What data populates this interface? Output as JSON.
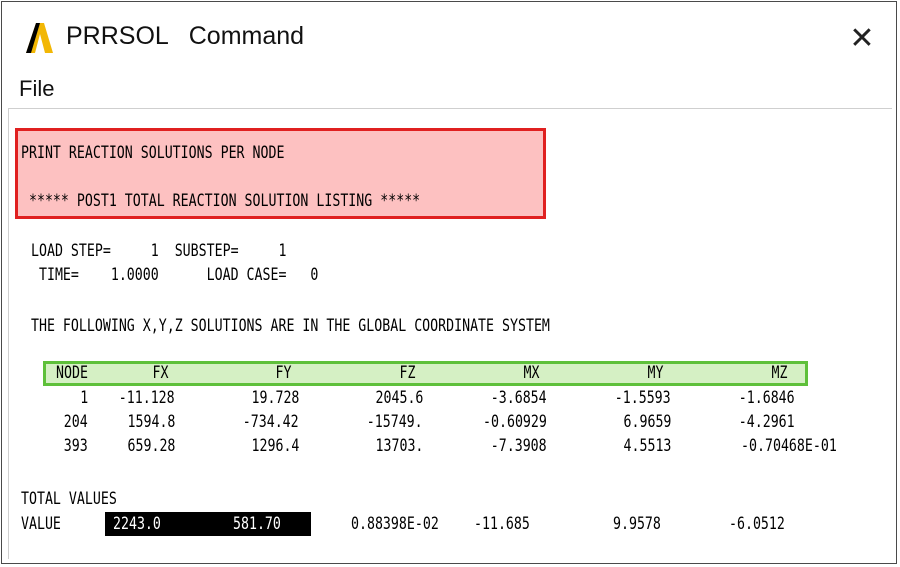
{
  "window": {
    "title_app": "PRRSOL",
    "title_cmd": "Command",
    "close_glyph": "✕"
  },
  "menu": {
    "file": "File"
  },
  "output": {
    "heading1": "PRINT REACTION SOLUTIONS PER NODE",
    "heading2": " ***** POST1 TOTAL REACTION SOLUTION LISTING *****",
    "load_line": "LOAD STEP=     1  SUBSTEP=     1",
    "time_line": " TIME=    1.0000      LOAD CASE=   0",
    "coord_line": "THE FOLLOWING X,Y,Z SOLUTIONS ARE IN THE GLOBAL COORDINATE SYSTEM",
    "columns": [
      "NODE",
      "FX",
      "FY",
      "FZ",
      "MX",
      "MY",
      "MZ"
    ],
    "rows": [
      [
        "1",
        "-11.128",
        "19.728",
        "2045.6",
        "-3.6854",
        "-1.5593",
        "-1.6846"
      ],
      [
        "204",
        "1594.8",
        "-734.42",
        "-15749.",
        "-0.60929",
        "6.9659",
        "-4.2961"
      ],
      [
        "393",
        "659.28",
        "1296.4",
        "13703.",
        "-7.3908",
        "4.5513",
        "-0.70468E-01"
      ]
    ],
    "total_label": "TOTAL VALUES",
    "value_label": "VALUE",
    "totals": [
      "2243.0",
      "581.70",
      "0.88398E-02",
      "-11.685",
      "9.9578",
      "-6.0512"
    ]
  }
}
